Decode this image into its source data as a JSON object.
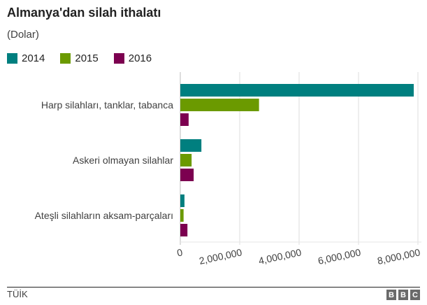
{
  "chart_data": {
    "type": "bar",
    "orientation": "horizontal",
    "title": "Almanya'dan silah ithalatı",
    "subtitle": "(Dolar)",
    "categories": [
      "Harp silahları, tanklar, tabanca",
      "Askeri olmayan silahlar",
      "Ateşli silahların aksam-parçaları"
    ],
    "series": [
      {
        "name": "2014",
        "color": "#007f7f",
        "values": [
          7860000,
          710000,
          140000
        ]
      },
      {
        "name": "2015",
        "color": "#6b9a00",
        "values": [
          2650000,
          380000,
          110000
        ]
      },
      {
        "name": "2016",
        "color": "#7c0050",
        "values": [
          280000,
          450000,
          240000
        ]
      }
    ],
    "xlim": [
      0,
      8000000
    ],
    "xticks": [
      0,
      2000000,
      4000000,
      6000000,
      8000000
    ],
    "xtick_labels": [
      "0",
      "2,000,000",
      "4,000,000",
      "6,000,000",
      "8,000,000"
    ],
    "xlabel": "",
    "ylabel": "",
    "grid": true,
    "legend_position": "top-left"
  },
  "footer": {
    "source": "TÜİK",
    "logo": [
      "B",
      "B",
      "C"
    ]
  }
}
